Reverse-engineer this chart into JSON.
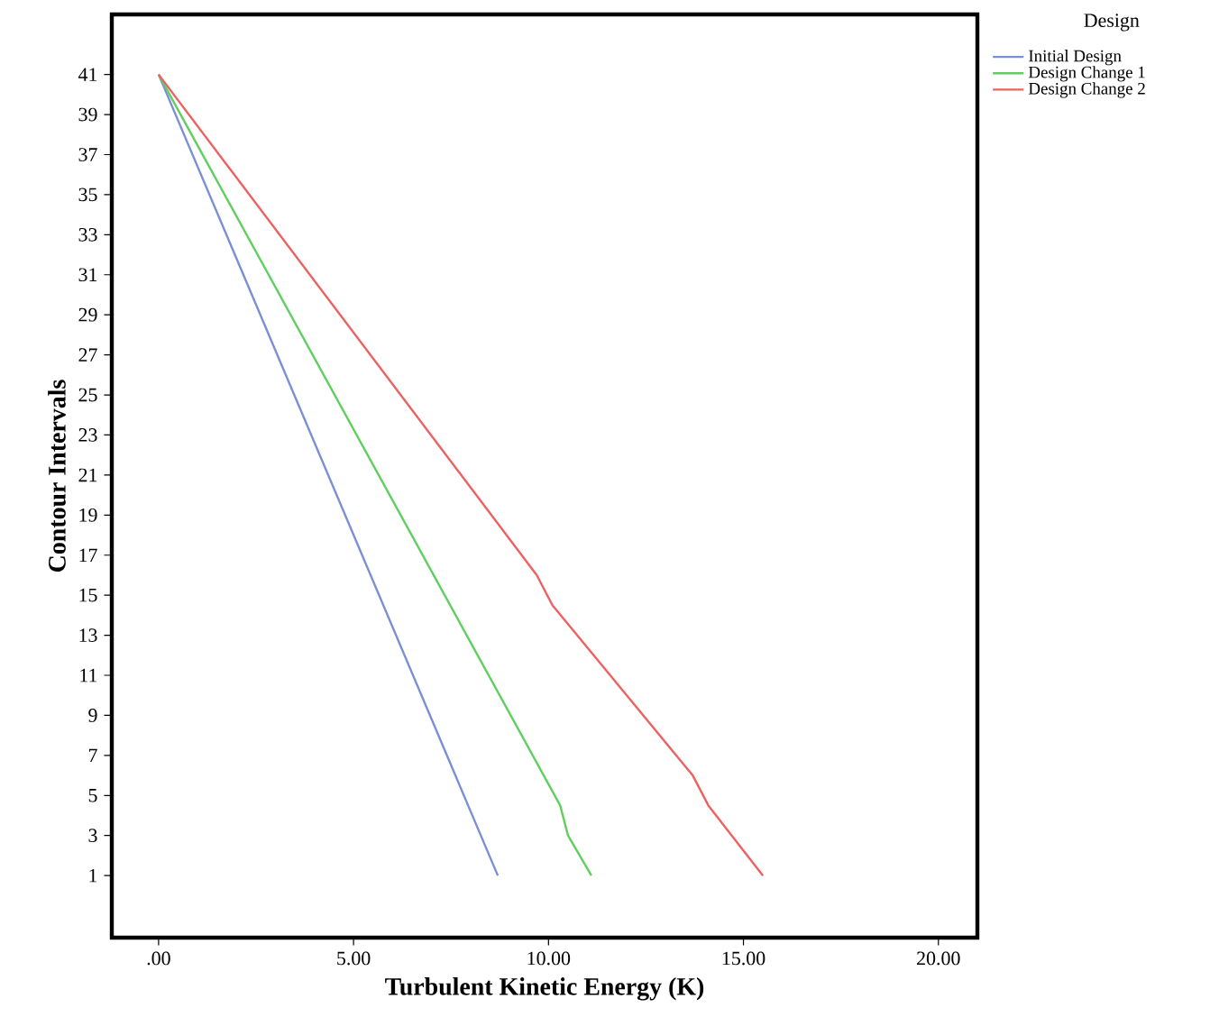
{
  "chart_data": {
    "type": "line",
    "xlabel": "Turbulent Kinetic Energy (K)",
    "ylabel": "Contour Intervals",
    "legend_title": "Design",
    "xlim": [
      -1.2,
      21.0
    ],
    "ylim": [
      -2.1,
      44.0
    ],
    "xticks": [
      {
        "value": 0,
        "label": ".00"
      },
      {
        "value": 5,
        "label": "5.00"
      },
      {
        "value": 10,
        "label": "10.00"
      },
      {
        "value": 15,
        "label": "15.00"
      },
      {
        "value": 20,
        "label": "20.00"
      }
    ],
    "yticks": [
      1,
      3,
      5,
      7,
      9,
      11,
      13,
      15,
      17,
      19,
      21,
      23,
      25,
      27,
      29,
      31,
      33,
      35,
      37,
      39,
      41
    ],
    "grid": false,
    "legend": "top right",
    "marker": "none",
    "line_style": "solid",
    "series": [
      {
        "name": "Initial Design",
        "color": "#7b8fd6",
        "x": [
          0,
          8.7
        ],
        "values": [
          41,
          1
        ]
      },
      {
        "name": "Design Change 1",
        "color": "#5fcf5f",
        "x": [
          0,
          10.3,
          10.5,
          11.1
        ],
        "values": [
          41,
          4.5,
          3,
          1
        ]
      },
      {
        "name": "Design Change 2",
        "color": "#f06060",
        "x": [
          0,
          9.7,
          10.1,
          13.7,
          14.1,
          15.5
        ],
        "values": [
          41,
          16,
          14.5,
          6,
          4.5,
          1
        ]
      }
    ]
  }
}
